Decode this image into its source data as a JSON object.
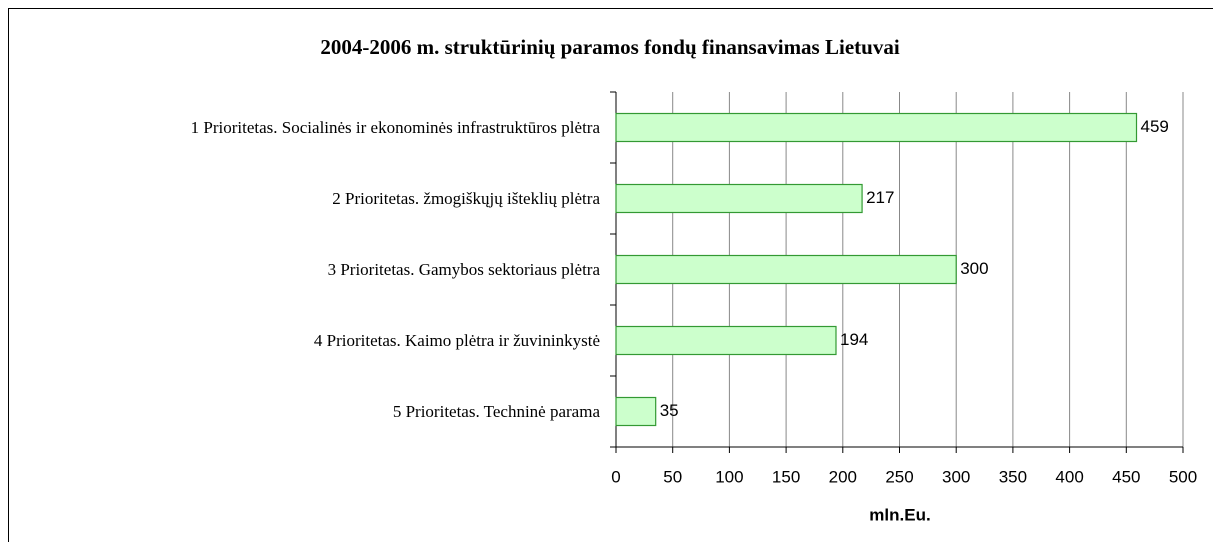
{
  "chart_data": {
    "type": "bar",
    "orientation": "horizontal",
    "title": "2004-2006 m. struktūrinių paramos fondų finansavimas Lietuvai",
    "categories": [
      "1 Prioritetas. Socialinės ir ekonominės infrastruktūros plėtra",
      "2 Prioritetas. žmogiškųjų išteklių plėtra",
      "3 Prioritetas. Gamybos sektoriaus plėtra",
      "4 Prioritetas. Kaimo plėtra ir žuvininkystė",
      "5 Prioritetas. Techninė parama"
    ],
    "values": [
      459,
      217,
      300,
      194,
      35
    ],
    "color": "#ccffcc",
    "edge_color": "#339933",
    "xlabel": "mln.Eu.",
    "xlim": [
      0,
      500
    ],
    "xticks": [
      0,
      50,
      100,
      150,
      200,
      250,
      300,
      350,
      400,
      450,
      500
    ],
    "grid": true
  }
}
